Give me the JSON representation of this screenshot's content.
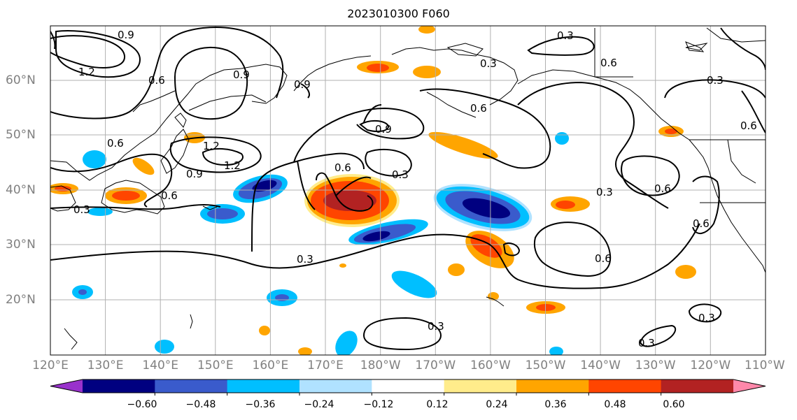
{
  "title": "2023010300 F060",
  "map": {
    "lon_labels": [
      "120°E",
      "130°E",
      "140°E",
      "150°E",
      "160°E",
      "170°E",
      "180°W",
      "170°W",
      "160°W",
      "150°W",
      "140°W",
      "130°W",
      "120°W",
      "110°W"
    ],
    "lat_labels": [
      "20°N",
      "30°N",
      "40°N",
      "50°N",
      "60°N"
    ],
    "contour_labels": [
      "0.9",
      "1.2",
      "0.6",
      "0.9",
      "0.3",
      "0.6",
      "0.3",
      "0.9",
      "1.2",
      "1.2",
      "0.9",
      "0.6",
      "0.3",
      "0.6",
      "0.3",
      "0.9",
      "0.3",
      "0.3",
      "0.6",
      "0.6",
      "0.6",
      "0.3",
      "0.3",
      "0.3",
      "0.3",
      "0.6",
      "0.6",
      "0.6"
    ]
  },
  "colorbar": {
    "tick_labels": [
      "−0.60",
      "−0.48",
      "−0.36",
      "−0.24",
      "−0.12",
      "0.12",
      "0.24",
      "0.36",
      "0.48",
      "0.60"
    ],
    "colors": [
      "#9932cc",
      "#000080",
      "#3a5bcc",
      "#00bfff",
      "#b0e2ff",
      "#ffffff",
      "#ffec8b",
      "#ffa500",
      "#ff4500",
      "#b22222",
      "#ff88aa"
    ]
  },
  "legend_colors": {
    "land_outline": "#000000",
    "grid": "#b0b0b0",
    "contour": "#000000"
  }
}
